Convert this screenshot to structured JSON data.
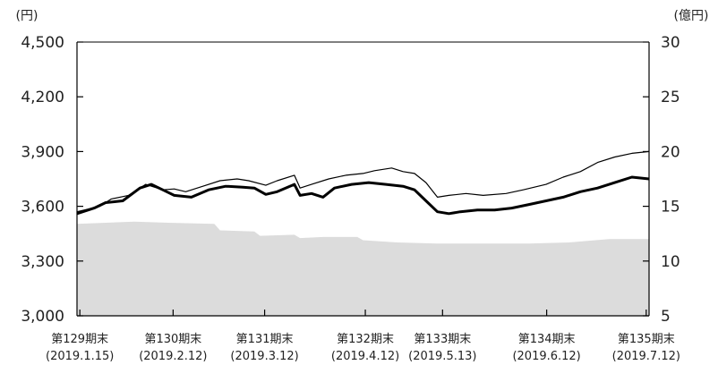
{
  "chart_data": {
    "type": "line",
    "left_axis": {
      "unit": "(円)",
      "ylim": [
        3000,
        4500
      ],
      "ticks": [
        3000,
        3300,
        3600,
        3900,
        4200,
        4500
      ],
      "tick_labels": [
        "3,000",
        "3,300",
        "3,600",
        "3,900",
        "4,200",
        "4,500"
      ]
    },
    "right_axis": {
      "unit": "(億円)",
      "ylim": [
        5,
        30
      ],
      "ticks": [
        5,
        10,
        15,
        20,
        25,
        30
      ],
      "tick_labels": [
        "5",
        "10",
        "15",
        "20",
        "25",
        "30"
      ]
    },
    "x_range": [
      0,
      100
    ],
    "x_labels": [
      {
        "x": 0.5,
        "line1": "第129期末",
        "line2": "(2019.1.15)"
      },
      {
        "x": 16.8,
        "line1": "第130期末",
        "line2": "(2019.2.12)"
      },
      {
        "x": 32.8,
        "line1": "第131期末",
        "line2": "(2019.3.12)"
      },
      {
        "x": 50.4,
        "line1": "第132期末",
        "line2": "(2019.4.12)"
      },
      {
        "x": 63.9,
        "line1": "第133期末",
        "line2": "(2019.5.13)"
      },
      {
        "x": 82.1,
        "line1": "第134期末",
        "line2": "(2019.6.12)"
      },
      {
        "x": 99.5,
        "line1": "第135期末",
        "line2": "(2019.7.12)"
      }
    ],
    "series": [
      {
        "axis": "right",
        "style": "area",
        "color": "#dcdcdc",
        "points": [
          [
            0,
            13.4
          ],
          [
            5,
            13.5
          ],
          [
            10,
            13.6
          ],
          [
            16,
            13.5
          ],
          [
            24,
            13.4
          ],
          [
            25,
            12.8
          ],
          [
            31,
            12.7
          ],
          [
            32,
            12.3
          ],
          [
            38,
            12.4
          ],
          [
            39,
            12.1
          ],
          [
            43,
            12.2
          ],
          [
            49,
            12.2
          ],
          [
            50,
            11.9
          ],
          [
            56,
            11.7
          ],
          [
            63,
            11.6
          ],
          [
            67,
            11.6
          ],
          [
            73,
            11.6
          ],
          [
            79,
            11.6
          ],
          [
            86,
            11.7
          ],
          [
            93,
            12.0
          ],
          [
            100,
            12.0
          ]
        ]
      },
      {
        "axis": "left",
        "style": "thin",
        "color": "#000000",
        "points": [
          [
            0,
            3570
          ],
          [
            4,
            3600
          ],
          [
            6,
            3640
          ],
          [
            9,
            3660
          ],
          [
            12,
            3720
          ],
          [
            15,
            3690
          ],
          [
            17,
            3695
          ],
          [
            19,
            3680
          ],
          [
            22,
            3710
          ],
          [
            25,
            3740
          ],
          [
            28,
            3750
          ],
          [
            30,
            3740
          ],
          [
            33,
            3715
          ],
          [
            35,
            3740
          ],
          [
            38,
            3770
          ],
          [
            39,
            3700
          ],
          [
            41,
            3720
          ],
          [
            44,
            3750
          ],
          [
            47,
            3770
          ],
          [
            50,
            3780
          ],
          [
            52,
            3795
          ],
          [
            55,
            3810
          ],
          [
            57,
            3790
          ],
          [
            59,
            3780
          ],
          [
            61,
            3730
          ],
          [
            63,
            3650
          ],
          [
            65,
            3660
          ],
          [
            68,
            3670
          ],
          [
            71,
            3660
          ],
          [
            75,
            3670
          ],
          [
            78,
            3690
          ],
          [
            82,
            3720
          ],
          [
            85,
            3760
          ],
          [
            88,
            3790
          ],
          [
            91,
            3840
          ],
          [
            94,
            3870
          ],
          [
            97,
            3890
          ],
          [
            100,
            3900
          ]
        ]
      },
      {
        "axis": "left",
        "style": "thick",
        "color": "#000000",
        "points": [
          [
            0,
            3560
          ],
          [
            3,
            3590
          ],
          [
            5,
            3620
          ],
          [
            8,
            3630
          ],
          [
            11,
            3700
          ],
          [
            13,
            3720
          ],
          [
            15,
            3690
          ],
          [
            17,
            3660
          ],
          [
            20,
            3650
          ],
          [
            23,
            3690
          ],
          [
            26,
            3710
          ],
          [
            29,
            3705
          ],
          [
            31,
            3700
          ],
          [
            33,
            3665
          ],
          [
            35,
            3680
          ],
          [
            38,
            3720
          ],
          [
            39,
            3660
          ],
          [
            41,
            3670
          ],
          [
            43,
            3650
          ],
          [
            45,
            3700
          ],
          [
            48,
            3720
          ],
          [
            51,
            3730
          ],
          [
            54,
            3720
          ],
          [
            57,
            3710
          ],
          [
            59,
            3690
          ],
          [
            61,
            3630
          ],
          [
            63,
            3570
          ],
          [
            65,
            3560
          ],
          [
            67,
            3570
          ],
          [
            70,
            3580
          ],
          [
            73,
            3580
          ],
          [
            76,
            3590
          ],
          [
            79,
            3610
          ],
          [
            82,
            3630
          ],
          [
            85,
            3650
          ],
          [
            88,
            3680
          ],
          [
            91,
            3700
          ],
          [
            94,
            3730
          ],
          [
            97,
            3760
          ],
          [
            100,
            3750
          ]
        ]
      }
    ]
  }
}
